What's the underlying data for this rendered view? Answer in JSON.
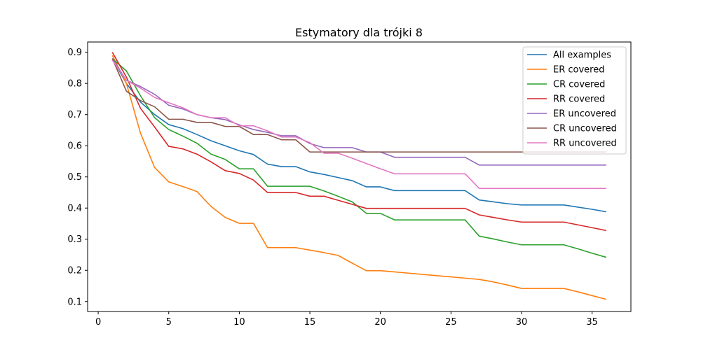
{
  "chart_data": {
    "type": "line",
    "title": "Estymatory dla trójki 8",
    "xlabel": "",
    "ylabel": "",
    "xlim": [
      -0.75,
      37.75
    ],
    "ylim": [
      0.068,
      0.933
    ],
    "xticks": [
      0,
      5,
      10,
      15,
      20,
      25,
      30,
      35
    ],
    "yticks": [
      0.1,
      0.2,
      0.3,
      0.4,
      0.5,
      0.6,
      0.7,
      0.8,
      0.9
    ],
    "grid": false,
    "legend_position": "top-right",
    "x": [
      1,
      2,
      3,
      4,
      5,
      6,
      7,
      8,
      9,
      10,
      11,
      12,
      13,
      14,
      15,
      16,
      17,
      18,
      19,
      20,
      21,
      22,
      23,
      24,
      25,
      26,
      27,
      28,
      29,
      30,
      31,
      32,
      33,
      34,
      35,
      36
    ],
    "series": [
      {
        "name": "All examples",
        "color": "#1f77b4",
        "values": [
          0.88,
          0.8,
          0.74,
          0.7,
          0.668,
          0.655,
          0.636,
          0.616,
          0.6,
          0.584,
          0.572,
          0.541,
          0.533,
          0.533,
          0.516,
          0.508,
          0.498,
          0.488,
          0.468,
          0.468,
          0.456,
          0.456,
          0.456,
          0.456,
          0.456,
          0.456,
          0.426,
          0.42,
          0.414,
          0.41,
          0.41,
          0.41,
          0.41,
          0.403,
          0.396,
          0.388
        ]
      },
      {
        "name": "ER covered",
        "color": "#ff7f0e",
        "values": [
          0.89,
          0.8,
          0.64,
          0.53,
          0.484,
          0.469,
          0.453,
          0.405,
          0.37,
          0.351,
          0.351,
          0.273,
          0.273,
          0.273,
          0.265,
          0.257,
          0.248,
          0.223,
          0.199,
          0.199,
          0.195,
          0.191,
          0.187,
          0.183,
          0.179,
          0.175,
          0.171,
          0.163,
          0.153,
          0.142,
          0.142,
          0.142,
          0.142,
          0.131,
          0.119,
          0.107
        ]
      },
      {
        "name": "CR covered",
        "color": "#2ca02c",
        "values": [
          0.88,
          0.84,
          0.76,
          0.69,
          0.652,
          0.631,
          0.608,
          0.573,
          0.556,
          0.526,
          0.526,
          0.47,
          0.47,
          0.47,
          0.47,
          0.455,
          0.438,
          0.42,
          0.383,
          0.383,
          0.362,
          0.362,
          0.362,
          0.362,
          0.362,
          0.362,
          0.31,
          0.301,
          0.291,
          0.282,
          0.282,
          0.282,
          0.282,
          0.269,
          0.255,
          0.242
        ]
      },
      {
        "name": "RR covered",
        "color": "#d62728",
        "values": [
          0.9,
          0.82,
          0.72,
          0.66,
          0.598,
          0.59,
          0.573,
          0.548,
          0.52,
          0.511,
          0.49,
          0.45,
          0.45,
          0.45,
          0.438,
          0.438,
          0.425,
          0.412,
          0.399,
          0.399,
          0.399,
          0.399,
          0.399,
          0.399,
          0.399,
          0.399,
          0.378,
          0.37,
          0.362,
          0.355,
          0.355,
          0.355,
          0.355,
          0.346,
          0.337,
          0.328
        ]
      },
      {
        "name": "ER uncovered",
        "color": "#9467bd",
        "values": [
          0.88,
          0.81,
          0.79,
          0.765,
          0.73,
          0.718,
          0.7,
          0.69,
          0.684,
          0.667,
          0.652,
          0.643,
          0.632,
          0.632,
          0.607,
          0.594,
          0.594,
          0.594,
          0.58,
          0.58,
          0.563,
          0.563,
          0.563,
          0.563,
          0.563,
          0.563,
          0.538,
          0.538,
          0.538,
          0.538,
          0.538,
          0.538,
          0.538,
          0.538,
          0.538,
          0.538
        ]
      },
      {
        "name": "CR uncovered",
        "color": "#8c564b",
        "values": [
          0.88,
          0.775,
          0.745,
          0.725,
          0.685,
          0.685,
          0.675,
          0.675,
          0.662,
          0.662,
          0.636,
          0.636,
          0.619,
          0.619,
          0.58,
          0.58,
          0.58,
          0.58,
          0.58,
          0.58,
          0.58,
          0.58,
          0.58,
          0.58,
          0.58,
          0.58,
          0.58,
          0.58,
          0.58,
          0.58,
          0.58,
          0.58,
          0.58,
          0.58,
          0.58,
          0.58
        ]
      },
      {
        "name": "RR uncovered",
        "color": "#e377c2",
        "values": [
          0.875,
          0.81,
          0.785,
          0.755,
          0.738,
          0.722,
          0.7,
          0.69,
          0.69,
          0.664,
          0.664,
          0.648,
          0.628,
          0.628,
          0.61,
          0.576,
          0.576,
          0.56,
          0.543,
          0.526,
          0.51,
          0.51,
          0.51,
          0.51,
          0.51,
          0.51,
          0.463,
          0.463,
          0.463,
          0.463,
          0.463,
          0.463,
          0.463,
          0.463,
          0.463,
          0.463
        ]
      }
    ]
  }
}
